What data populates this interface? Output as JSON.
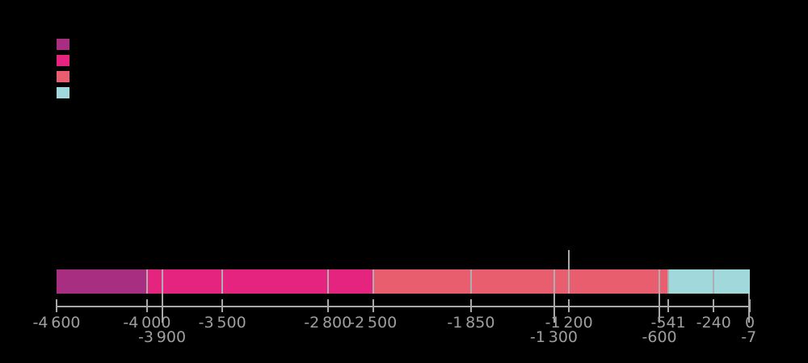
{
  "chart_data": {
    "type": "bar",
    "subtype": "horizontal-stacked-timeline",
    "title": "",
    "xlabel": "",
    "ylabel": "",
    "grid": "event lines over bar",
    "x_axis": {
      "min": -4600,
      "max": 0,
      "ticks": [
        {
          "value": -4600,
          "label": "-4 600",
          "row": 1
        },
        {
          "value": -4000,
          "label": "-4 000",
          "row": 1
        },
        {
          "value": -3900,
          "label": "-3 900",
          "row": 2
        },
        {
          "value": -3500,
          "label": "-3 500",
          "row": 1
        },
        {
          "value": -2800,
          "label": "-2 800",
          "row": 1
        },
        {
          "value": -2500,
          "label": "-2 500",
          "row": 1
        },
        {
          "value": -1850,
          "label": "-1 850",
          "row": 1
        },
        {
          "value": -1300,
          "label": "-1 300",
          "row": 2
        },
        {
          "value": -1200,
          "label": "-1 200",
          "row": 1
        },
        {
          "value": -600,
          "label": "-600",
          "row": 2
        },
        {
          "value": -541,
          "label": "-541",
          "row": 1
        },
        {
          "value": -240,
          "label": "-240",
          "row": 1
        },
        {
          "value": -7,
          "label": "-7",
          "row": 2
        },
        {
          "value": 0,
          "label": "0",
          "row": 1
        }
      ]
    },
    "segments": [
      {
        "from": -4600,
        "to": -4000,
        "color": "#a72e80"
      },
      {
        "from": -4000,
        "to": -2500,
        "color": "#e5247f"
      },
      {
        "from": -2500,
        "to": -541,
        "color": "#e85e6f"
      },
      {
        "from": -541,
        "to": 0,
        "color": "#a0d8db"
      }
    ],
    "grid_lines_over_bar": [
      -4000,
      -3900,
      -3500,
      -2800,
      -2500,
      -1850,
      -1300,
      -1200,
      -600,
      -541,
      -240
    ],
    "annotation_line": {
      "value": -1200,
      "extends_above_bar": true
    },
    "legend": {
      "position": "top-left",
      "swatches": [
        {
          "color": "#a72e80",
          "label": ""
        },
        {
          "color": "#e5247f",
          "label": ""
        },
        {
          "color": "#e85e6f",
          "label": ""
        },
        {
          "color": "#a0d8db",
          "label": ""
        }
      ]
    },
    "colors": {
      "background": "#000000",
      "axis": "#a8a8a8",
      "over_bar_lines": "#b0adb0",
      "tick_text": "#9e9e9e"
    }
  }
}
